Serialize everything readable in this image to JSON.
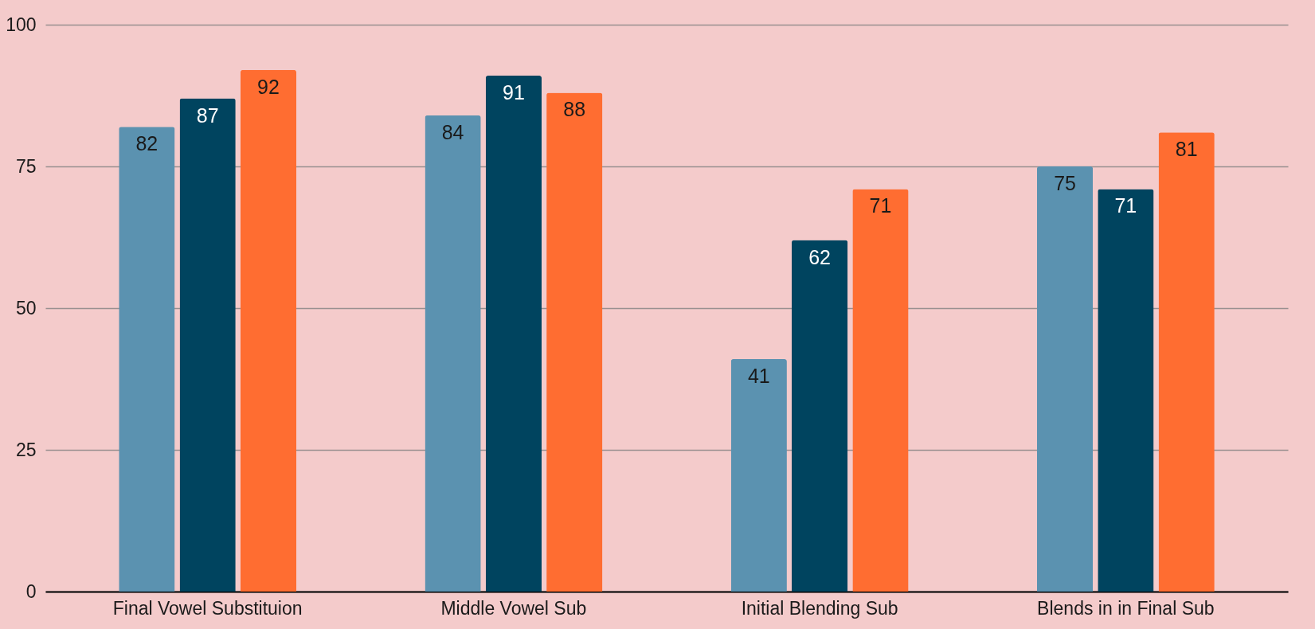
{
  "chart_data": {
    "type": "bar",
    "categories": [
      "Final Vowel Substituion",
      "Middle Vowel Sub",
      "Initial Blending Sub",
      "Blends in in Final Sub"
    ],
    "series": [
      {
        "color": "#5b92b0",
        "values": [
          82,
          84,
          41,
          75
        ]
      },
      {
        "color": "#00445f",
        "values": [
          87,
          91,
          62,
          71
        ]
      },
      {
        "color": "#ff6d31",
        "values": [
          92,
          88,
          71,
          81
        ]
      }
    ],
    "ylim": [
      0,
      100
    ],
    "yticks": [
      0,
      25,
      50,
      75,
      100
    ],
    "grid": true,
    "data_labels": true
  }
}
